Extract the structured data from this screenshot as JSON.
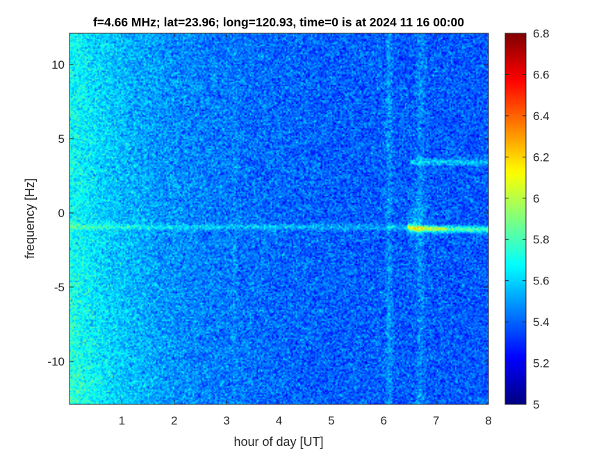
{
  "chart_data": {
    "type": "heatmap",
    "title": "f=4.66 MHz;  lat=23.96; long=120.93, time=0 is at 2024 11 16 00:00",
    "xlabel": "hour of day [UT]",
    "ylabel": "frequency [Hz]",
    "xlim": [
      0,
      8
    ],
    "ylim": [
      -12.9,
      12.1
    ],
    "x_ticks": [
      1,
      2,
      3,
      4,
      5,
      6,
      7,
      8
    ],
    "y_ticks": [
      -10,
      -5,
      0,
      5,
      10
    ],
    "colorbar": {
      "colormap": "jet",
      "clim": [
        5,
        6.8
      ],
      "ticks": [
        5,
        5.2,
        5.4,
        5.6,
        5.8,
        6,
        6.2,
        6.4,
        6.6,
        6.8
      ]
    },
    "features": [
      {
        "label": "Doppler trace",
        "x": [
          0,
          2,
          4,
          5.5,
          6.5,
          6.8,
          7.5,
          8
        ],
        "y": [
          -0.9,
          -0.9,
          -1.0,
          -1.0,
          -1.0,
          -0.95,
          -1.1,
          -1.2
        ]
      },
      {
        "label": "upper trace",
        "x": [
          6.5,
          7.0,
          8.0
        ],
        "y": [
          3.4,
          3.4,
          3.3
        ]
      },
      {
        "label": "vertical bands",
        "x": [
          6.1,
          6.7
        ]
      }
    ]
  },
  "ticks_x_text": [
    "1",
    "2",
    "3",
    "4",
    "5",
    "6",
    "7",
    "8"
  ],
  "ticks_y_text": [
    "10",
    "5",
    "0",
    "-5",
    "-10"
  ],
  "ticks_c_text": [
    "5",
    "5.2",
    "5.4",
    "5.6",
    "5.8",
    "6",
    "6.2",
    "6.4",
    "6.6",
    "6.8"
  ]
}
